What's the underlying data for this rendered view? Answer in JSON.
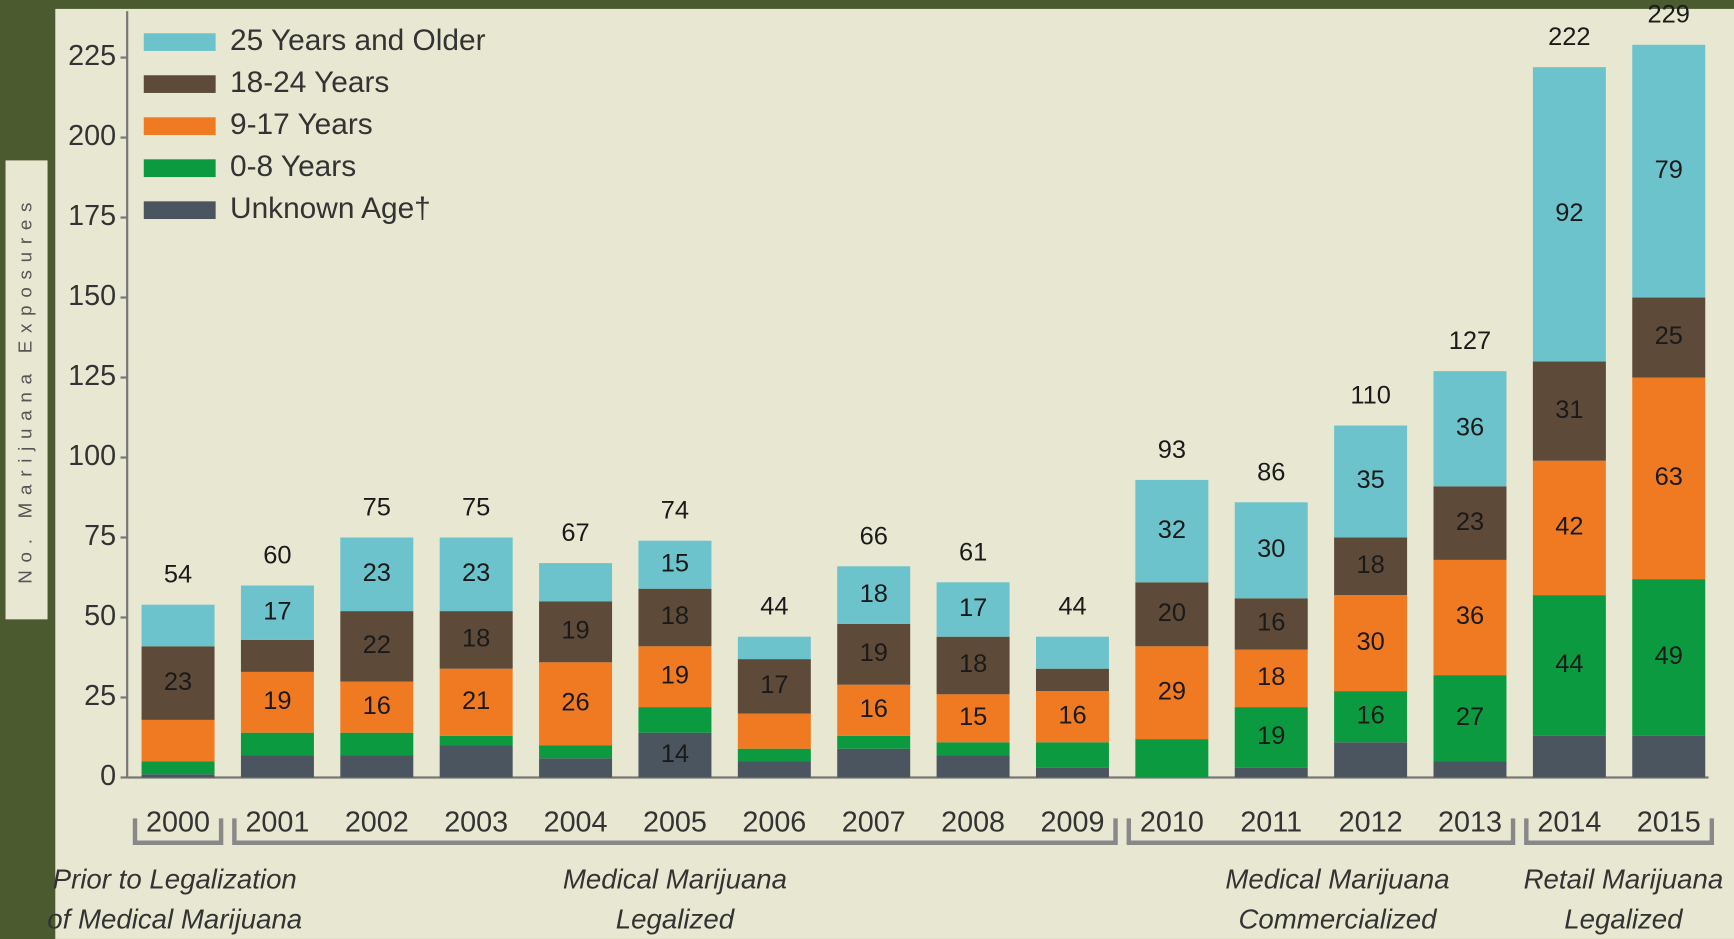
{
  "chart_data": {
    "type": "stacked-bar",
    "y_label": "No. Marijuana Exposures",
    "categories": [
      "2000",
      "2001",
      "2002",
      "2003",
      "2004",
      "2005",
      "2006",
      "2007",
      "2008",
      "2009",
      "2010",
      "2011",
      "2012",
      "2013",
      "2014",
      "2015"
    ],
    "series": [
      {
        "name": "25 Years and Older",
        "color": "#6cc3cb",
        "values": [
          13,
          17,
          23,
          23,
          12,
          15,
          7,
          18,
          17,
          10,
          32,
          30,
          35,
          36,
          92,
          79
        ],
        "value_labels": [
          null,
          "17",
          "23",
          "23",
          null,
          "15",
          null,
          "18",
          "17",
          null,
          "32",
          "30",
          "35",
          "36",
          "92",
          "79"
        ]
      },
      {
        "name": "18-24 Years",
        "color": "#5e4a38",
        "values": [
          23,
          10,
          22,
          18,
          19,
          18,
          17,
          19,
          18,
          7,
          20,
          16,
          18,
          23,
          31,
          25
        ],
        "value_labels": [
          "23",
          null,
          "22",
          "18",
          "19",
          "18",
          "17",
          "19",
          "18",
          null,
          "20",
          "16",
          "18",
          "23",
          "31",
          "25"
        ]
      },
      {
        "name": "9-17 Years",
        "color": "#f07a22",
        "values": [
          13,
          19,
          16,
          21,
          26,
          19,
          11,
          16,
          15,
          16,
          29,
          18,
          30,
          36,
          42,
          63
        ],
        "value_labels": [
          null,
          "19",
          "16",
          "21",
          "26",
          "19",
          null,
          "16",
          "15",
          "16",
          "29",
          "18",
          "30",
          "36",
          "42",
          "63"
        ]
      },
      {
        "name": "0-8 Years",
        "color": "#0b9a3f",
        "values": [
          4,
          7,
          7,
          3,
          4,
          8,
          4,
          4,
          4,
          8,
          12,
          19,
          16,
          27,
          44,
          49
        ],
        "value_labels": [
          null,
          null,
          null,
          null,
          null,
          null,
          null,
          null,
          null,
          null,
          null,
          "19",
          "16",
          "27",
          "44",
          "49"
        ]
      },
      {
        "name": "Unknown Age†",
        "color": "#4b5560",
        "values": [
          1,
          7,
          7,
          10,
          6,
          14,
          5,
          9,
          7,
          3,
          0,
          3,
          11,
          5,
          13,
          13
        ],
        "value_labels": [
          null,
          null,
          null,
          null,
          null,
          "14",
          null,
          null,
          null,
          null,
          null,
          null,
          null,
          null,
          null,
          null
        ]
      }
    ],
    "totals": [
      54,
      60,
      75,
      75,
      67,
      74,
      44,
      66,
      61,
      44,
      93,
      86,
      110,
      127,
      222,
      229
    ],
    "periods": [
      {
        "lines": [
          "Prior to Legalization",
          "of Medical Marijuana"
        ],
        "start": "2000",
        "end": "2000"
      },
      {
        "lines": [
          "Medical Marijuana",
          "Legalized"
        ],
        "start": "2001",
        "end": "2009"
      },
      {
        "lines": [
          "Medical Marijuana",
          "Commercialized"
        ],
        "start": "2010",
        "end": "2013"
      },
      {
        "lines": [
          "Retail Marijuana",
          "Legalized"
        ],
        "start": "2014",
        "end": "2015"
      }
    ],
    "ylim": [
      0,
      225
    ],
    "yticks": [
      0,
      25,
      50,
      75,
      100,
      125,
      150,
      175,
      200,
      225
    ],
    "legend": "top-left"
  }
}
